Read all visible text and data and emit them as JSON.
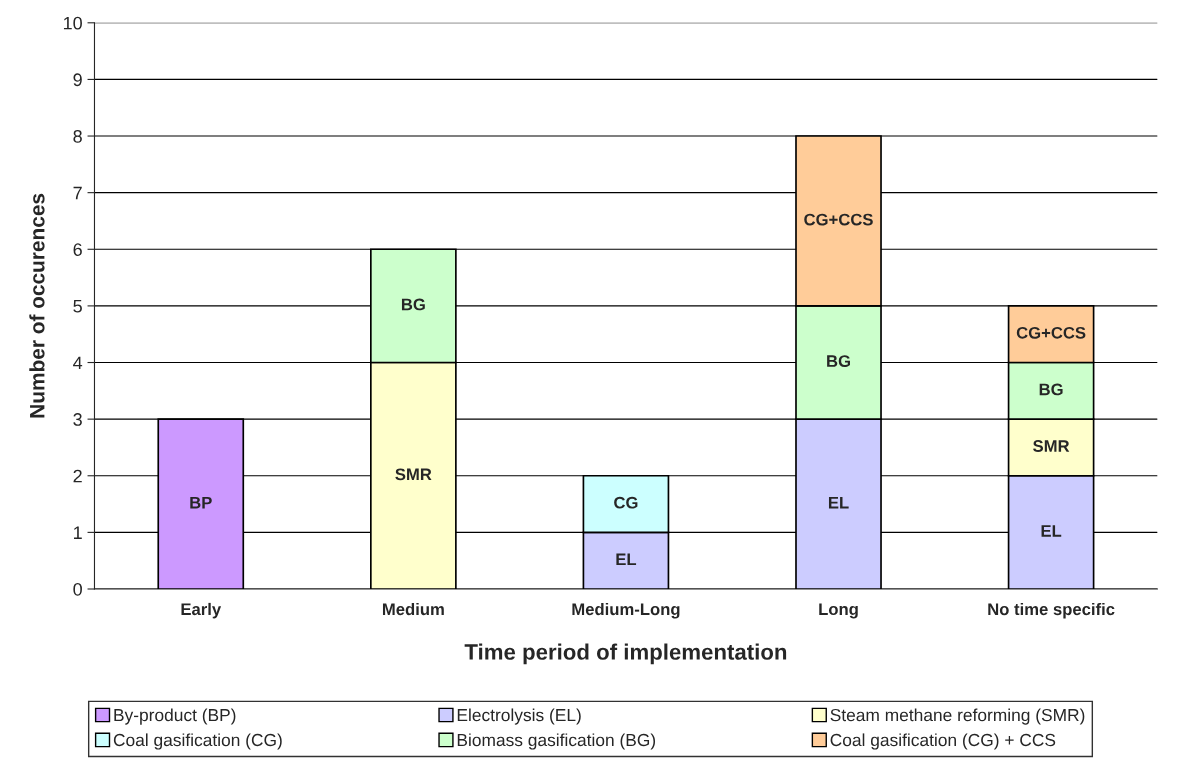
{
  "chart_data": {
    "type": "bar",
    "stacked": true,
    "xlabel": "Time period of implementation",
    "ylabel": "Number of occurences",
    "categories": [
      "Early",
      "Medium",
      "Medium-Long",
      "Long",
      "No time specific"
    ],
    "series": [
      {
        "name": "By-product (BP)",
        "color": "#cc99ff",
        "values": [
          3,
          null,
          null,
          null,
          null
        ],
        "value_labels": [
          "BP",
          null,
          null,
          null,
          null
        ]
      },
      {
        "name": "Electrolysis (EL)",
        "color": "#ccccff",
        "values": [
          null,
          null,
          1,
          3,
          2
        ],
        "value_labels": [
          null,
          null,
          "EL",
          "EL",
          "EL"
        ]
      },
      {
        "name": "Steam methane reforming (SMR)",
        "color": "#ffffcc",
        "values": [
          null,
          4,
          null,
          null,
          1
        ],
        "value_labels": [
          null,
          "SMR",
          null,
          null,
          "SMR"
        ]
      },
      {
        "name": "Coal gasification (CG)",
        "color": "#ccffff",
        "values": [
          null,
          null,
          1,
          null,
          null
        ],
        "value_labels": [
          null,
          null,
          "CG",
          null,
          null
        ]
      },
      {
        "name": "Biomass gasification (BG)",
        "color": "#ccffcc",
        "values": [
          null,
          2,
          null,
          2,
          1
        ],
        "value_labels": [
          null,
          "BG",
          null,
          "BG",
          "BG"
        ]
      },
      {
        "name": "Coal gasification (CG) + CCS",
        "color": "#ffcc99",
        "values": [
          null,
          null,
          null,
          3,
          1
        ],
        "value_labels": [
          null,
          null,
          null,
          "CG+CCS",
          "CG+CCS"
        ]
      }
    ],
    "ylim": [
      0,
      10
    ],
    "yticks": [
      0,
      1,
      2,
      3,
      4,
      5,
      6,
      7,
      8,
      9,
      10
    ],
    "grid": "y",
    "legend": "bottom"
  }
}
